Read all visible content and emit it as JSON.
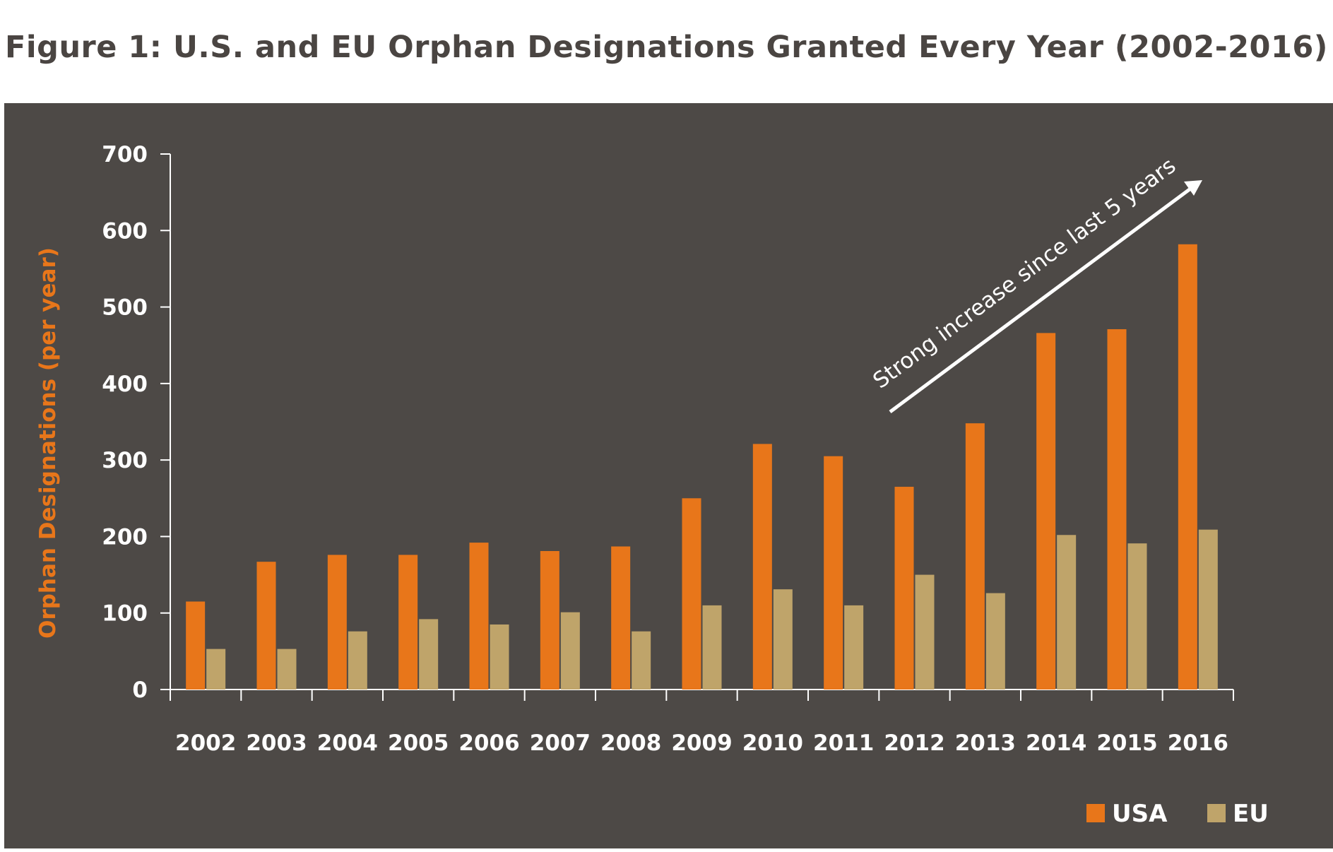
{
  "title": "Figure 1: U.S. and EU Orphan Designations Granted Every Year (2002-2016)",
  "colors": {
    "panel": "#4d4946",
    "usa": "#e8761a",
    "eu": "#bfa46a",
    "axis": "#ffffff"
  },
  "chart_data": {
    "type": "bar",
    "title": "Figure 1: U.S. and EU Orphan Designations Granted Every Year (2002-2016)",
    "xlabel": "",
    "ylabel": "Orphan Designations (per year)",
    "ylim": [
      0,
      700
    ],
    "yticks": [
      0,
      100,
      200,
      300,
      400,
      500,
      600,
      700
    ],
    "grid": false,
    "legend_position": "bottom-right",
    "categories": [
      "2002",
      "2003",
      "2004",
      "2005",
      "2006",
      "2007",
      "2008",
      "2009",
      "2010",
      "2011",
      "2012",
      "2013",
      "2014",
      "2015",
      "2016"
    ],
    "series": [
      {
        "name": "USA",
        "color": "#e8761a",
        "values": [
          115,
          167,
          176,
          176,
          192,
          181,
          187,
          250,
          321,
          305,
          265,
          348,
          466,
          471,
          582
        ]
      },
      {
        "name": "EU",
        "color": "#bfa46a",
        "values": [
          53,
          53,
          76,
          92,
          85,
          101,
          76,
          110,
          131,
          110,
          150,
          126,
          202,
          191,
          209
        ]
      }
    ],
    "annotation": "Strong increase since last 5 years"
  }
}
